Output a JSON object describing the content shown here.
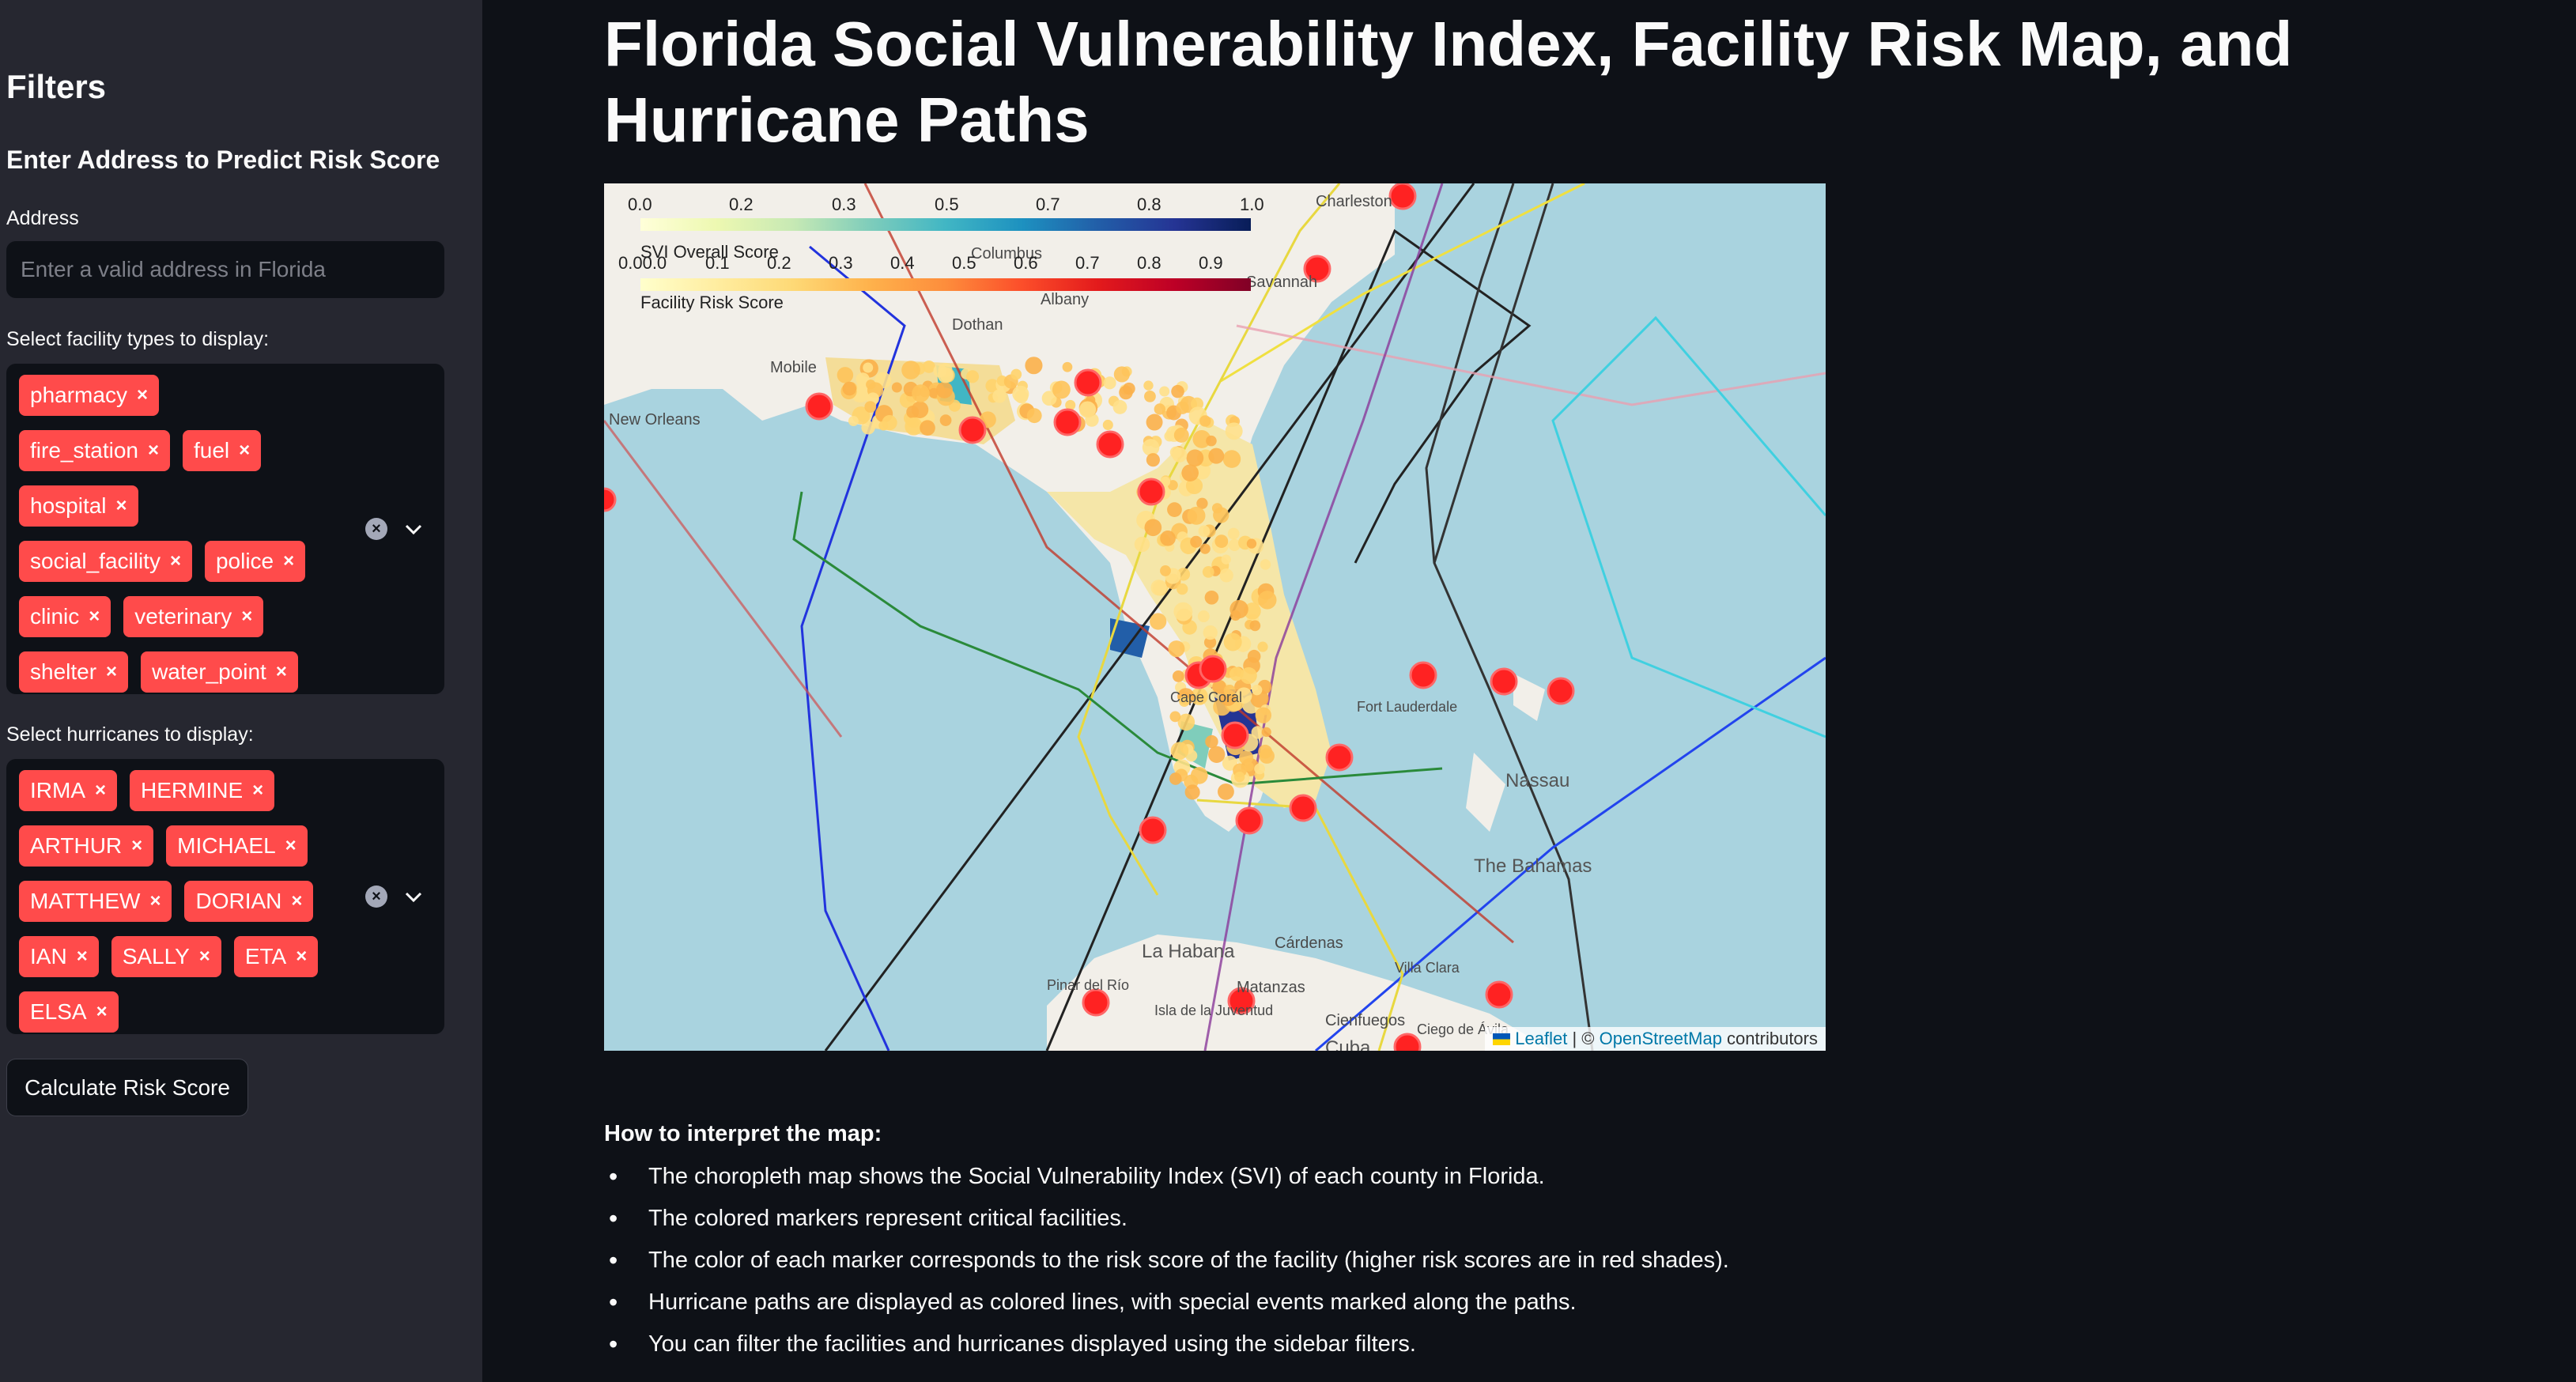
{
  "sidebar": {
    "title": "Filters",
    "subtitle": "Enter Address to Predict Risk Score",
    "address_label": "Address",
    "address_placeholder": "Enter a valid address in Florida",
    "address_value": "",
    "facility_label": "Select facility types to display:",
    "facility_chips": [
      "pharmacy",
      "fire_station",
      "fuel",
      "hospital",
      "social_facility",
      "police",
      "clinic",
      "veterinary",
      "shelter",
      "water_point"
    ],
    "hurricane_label": "Select hurricanes to display:",
    "hurricane_chips": [
      "IRMA",
      "HERMINE",
      "ARTHUR",
      "MICHAEL",
      "MATTHEW",
      "DORIAN",
      "IAN",
      "SALLY",
      "ETA",
      "ELSA"
    ],
    "chip_remove_glyph": "×",
    "calculate_button": "Calculate Risk Score"
  },
  "main": {
    "title": "Florida Social Vulnerability Index, Facility Risk Map, and Hurricane Paths",
    "help_title": "How to interpret the map:",
    "bullets": [
      "The choropleth map shows the Social Vulnerability Index (SVI) of each county in Florida.",
      "The colored markers represent critical facilities.",
      "The color of each marker corresponds to the risk score of the facility (higher risk scores are in red shades).",
      "Hurricane paths are displayed as colored lines, with special events marked along the paths.",
      "You can filter the facilities and hurricanes displayed using the sidebar filters."
    ]
  },
  "map": {
    "svi_legend": {
      "caption": "SVI Overall Score",
      "ticks": [
        "0.0",
        "0.2",
        "0.3",
        "0.5",
        "0.7",
        "0.8",
        "1.0"
      ],
      "colors": [
        "#ffffd9",
        "#edf8b1",
        "#c7e9b4",
        "#7fcdbb",
        "#41b6c4",
        "#1d91c0",
        "#225ea8",
        "#253494",
        "#081d58"
      ]
    },
    "risk_legend": {
      "caption": "Facility Risk Score",
      "ticks": [
        "0.00.0",
        "0.1",
        "0.2",
        "0.3",
        "0.4",
        "0.5",
        "0.6",
        "0.7",
        "0.8",
        "0.9"
      ],
      "colors": [
        "#ffffcc",
        "#ffeda0",
        "#fed976",
        "#feb24c",
        "#fd8d3c",
        "#fc4e2a",
        "#e31a1c",
        "#bd0026",
        "#800026"
      ]
    },
    "places": [
      "Charleston",
      "Columbus",
      "Albany",
      "Savannah",
      "Dothan",
      "Mobile",
      "New Orleans",
      "Nassau",
      "The Bahamas",
      "La Habana",
      "Cárdenas",
      "Matanzas",
      "Isla de la Juventud",
      "Cienfuegos",
      "Cuba",
      "Pinar del Río",
      "Ciego de Ávila",
      "Villa Clara",
      "Cape Coral",
      "Fort Lauderdale"
    ],
    "attribution": {
      "leaflet": "Leaflet",
      "sep": " | © ",
      "osm": "OpenStreetMap",
      "suffix": " contributors"
    },
    "accent_color": "#ff4b4b"
  }
}
